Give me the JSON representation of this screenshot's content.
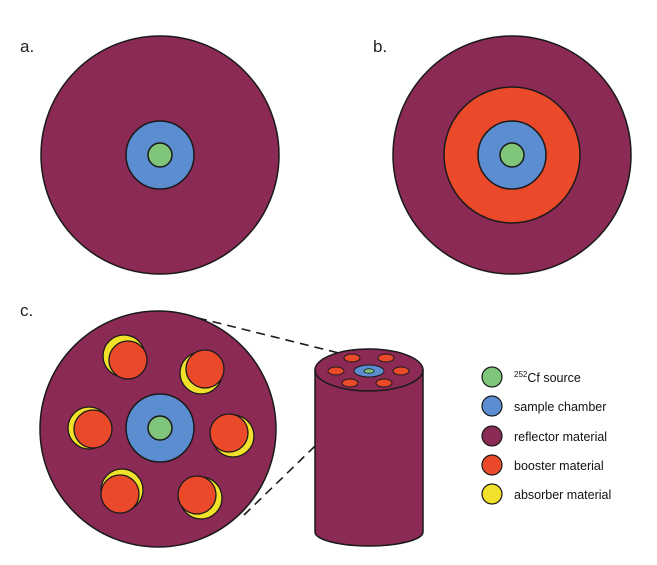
{
  "panels": {
    "a": {
      "label": "a."
    },
    "b": {
      "label": "b."
    },
    "c": {
      "label": "c."
    }
  },
  "legend": {
    "items": [
      {
        "key": "source",
        "superscript": "252",
        "label": "Cf source",
        "color": "#7fc67a"
      },
      {
        "key": "sample",
        "label": "sample chamber",
        "color": "#5b8dd0"
      },
      {
        "key": "reflector",
        "label": "reflector material",
        "color": "#8a2a55"
      },
      {
        "key": "booster",
        "label": "booster material",
        "color": "#ea4a2a"
      },
      {
        "key": "absorber",
        "label": "absorber material",
        "color": "#f2e12a"
      }
    ]
  },
  "colors": {
    "source": "#7fc67a",
    "sample": "#5b8dd0",
    "reflector": "#8a2a55",
    "booster": "#ea4a2a",
    "absorber": "#f2e12a",
    "outline": "#1a1a1a"
  }
}
